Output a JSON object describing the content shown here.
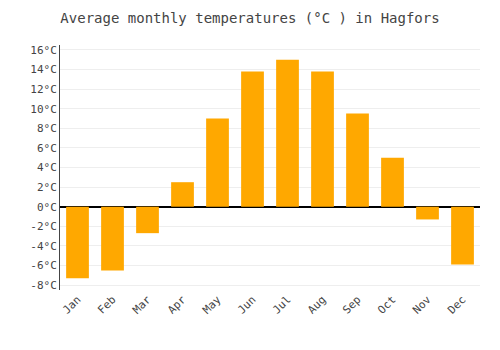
{
  "chart_data": {
    "type": "bar",
    "title": "Average monthly temperatures (°C ) in Hagfors",
    "categories": [
      "Jan",
      "Feb",
      "Mar",
      "Apr",
      "May",
      "Jun",
      "Jul",
      "Aug",
      "Sep",
      "Oct",
      "Nov",
      "Dec"
    ],
    "values": [
      -7.3,
      -6.5,
      -2.7,
      2.5,
      9.0,
      13.8,
      15.0,
      13.8,
      9.5,
      5.0,
      -1.3,
      -5.9
    ],
    "color": "#FFA800",
    "ylim": [
      -8.5,
      16.5
    ],
    "yticks": [
      {
        "value": -8,
        "label": "-8°C"
      },
      {
        "value": -6,
        "label": "-6°C"
      },
      {
        "value": -4,
        "label": "-4°C"
      },
      {
        "value": -2,
        "label": "-2°C"
      },
      {
        "value": 0,
        "label": "0°C"
      },
      {
        "value": 2,
        "label": "2°C"
      },
      {
        "value": 4,
        "label": "4°C"
      },
      {
        "value": 6,
        "label": "6°C"
      },
      {
        "value": 8,
        "label": "8°C"
      },
      {
        "value": 10,
        "label": "10°C"
      },
      {
        "value": 12,
        "label": "12°C"
      },
      {
        "value": 14,
        "label": "14°C"
      },
      {
        "value": 16,
        "label": "16°C"
      }
    ],
    "grid": true
  }
}
